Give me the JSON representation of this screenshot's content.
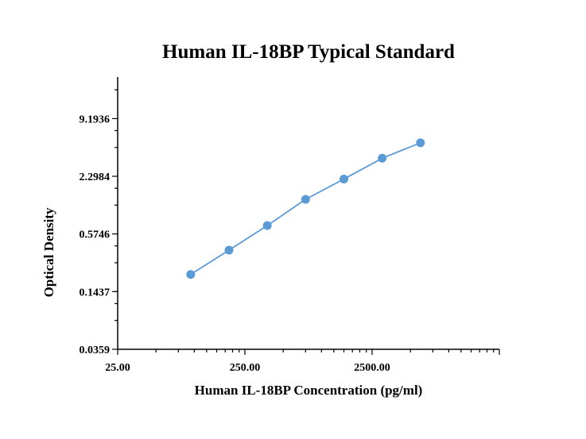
{
  "chart_data": {
    "type": "scatter",
    "title": "Human IL-18BP Typical Standard",
    "xlabel": "Human IL-18BP Concentration (pg/ml)",
    "ylabel": "Optical Density",
    "xscale": "log",
    "yscale": "log",
    "xlim": [
      25,
      25000
    ],
    "ylim": [
      0.0359,
      25
    ],
    "xticks": [
      "25.00",
      "250.00",
      "2500.00"
    ],
    "yticks": [
      "0.0359",
      "0.1437",
      "0.5746",
      "2.2984",
      "9.1936"
    ],
    "grid": false,
    "series": [
      {
        "color": "#5b9bd5",
        "x": [
          93.75,
          187.5,
          375,
          750,
          1500,
          3000,
          6000
        ],
        "y": [
          0.217,
          0.389,
          0.703,
          1.32,
          2.15,
          3.55,
          5.14
        ]
      }
    ]
  }
}
